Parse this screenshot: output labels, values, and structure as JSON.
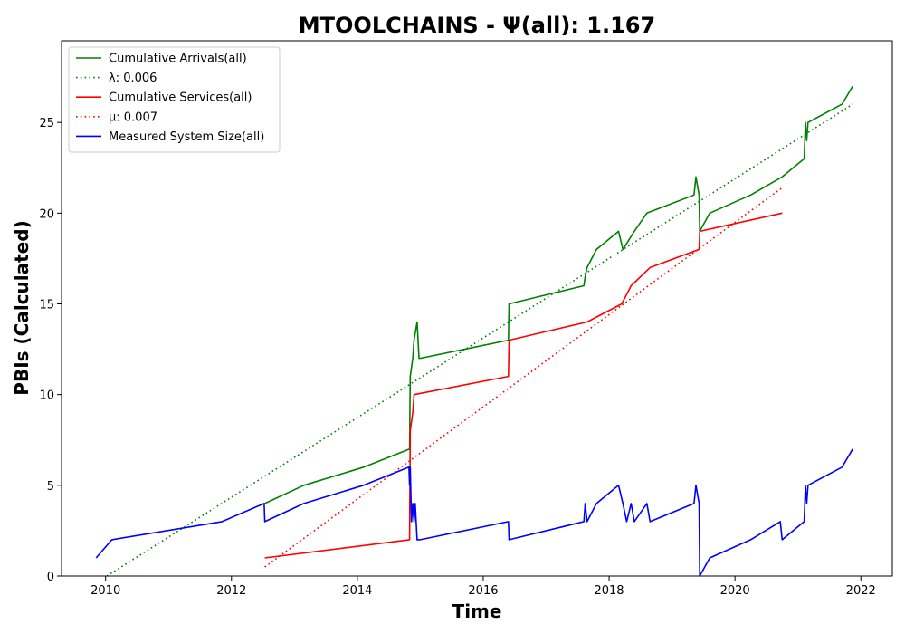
{
  "chart_data": {
    "type": "line",
    "title": "MTOOLCHAINS -  Ψ(all): 1.167",
    "xlabel": "Time",
    "ylabel": "PBIs (Calculated)",
    "xlim": [
      2009.3,
      2022.5
    ],
    "ylim": [
      0,
      29.5
    ],
    "xticks": [
      2010,
      2012,
      2014,
      2016,
      2018,
      2020,
      2022
    ],
    "yticks": [
      0,
      5,
      10,
      15,
      20,
      25
    ],
    "grid": false,
    "legend_position": "upper-left",
    "series": [
      {
        "name": "Cumulative Arrivals(all)",
        "color": "#008000",
        "style": "solid",
        "x": [
          2012.53,
          2013.15,
          2014.1,
          2014.83,
          2014.84,
          2014.86,
          2014.88,
          2014.9,
          2014.95,
          2014.98,
          2015.0,
          2016.4,
          2016.41,
          2017.6,
          2017.62,
          2017.65,
          2017.8,
          2018.15,
          2018.22,
          2018.4,
          2018.6,
          2019.35,
          2019.38,
          2019.43,
          2019.44,
          2019.6,
          2020.25,
          2020.75,
          2021.1,
          2021.12,
          2021.14,
          2021.16,
          2021.7,
          2021.87
        ],
        "y": [
          4,
          5,
          6,
          7,
          11,
          11.5,
          12,
          13,
          14,
          12,
          12,
          13,
          15,
          16,
          16.5,
          17,
          18,
          19,
          18,
          19,
          20,
          21,
          22,
          21,
          19,
          20,
          21,
          22,
          23,
          25,
          24,
          25,
          26,
          27
        ]
      },
      {
        "name": "λ: 0.006",
        "color": "#008000",
        "style": "dotted",
        "x": [
          2010.02,
          2021.87
        ],
        "y": [
          0,
          26
        ]
      },
      {
        "name": "Cumulative Services(all)",
        "color": "#ff0000",
        "style": "solid",
        "x": [
          2012.53,
          2014.83,
          2014.84,
          2014.86,
          2014.88,
          2014.9,
          2016.4,
          2016.41,
          2017.65,
          2018.2,
          2018.35,
          2018.65,
          2019.43,
          2019.44,
          2020.75
        ],
        "y": [
          1,
          2,
          8,
          8.5,
          9,
          10,
          11,
          13,
          14,
          15,
          16,
          17,
          18,
          19,
          20
        ]
      },
      {
        "name": "μ: 0.007",
        "color": "#ff0000",
        "style": "dotted",
        "x": [
          2012.53,
          2020.75
        ],
        "y": [
          0.5,
          21.4
        ]
      },
      {
        "name": "Measured System Size(all)",
        "color": "#0000ff",
        "style": "solid",
        "x": [
          2009.85,
          2010.1,
          2011.85,
          2012.52,
          2012.53,
          2013.15,
          2014.1,
          2014.82,
          2014.83,
          2014.84,
          2014.86,
          2014.88,
          2014.9,
          2014.92,
          2014.95,
          2015.0,
          2016.4,
          2016.41,
          2017.6,
          2017.62,
          2017.65,
          2017.8,
          2018.15,
          2018.22,
          2018.28,
          2018.35,
          2018.4,
          2018.6,
          2018.65,
          2019.35,
          2019.38,
          2019.43,
          2019.44,
          2019.6,
          2020.25,
          2020.72,
          2020.75,
          2021.1,
          2021.12,
          2021.14,
          2021.16,
          2021.7,
          2021.87
        ],
        "y": [
          1,
          2,
          3,
          4,
          3,
          4,
          5,
          6,
          5,
          6,
          3,
          4,
          3,
          4,
          2,
          2,
          3,
          2,
          3,
          4,
          3,
          4,
          5,
          4,
          3,
          4,
          3,
          4,
          3,
          4,
          5,
          4,
          0,
          1,
          2,
          3,
          2,
          3,
          5,
          4,
          5,
          6,
          7
        ]
      }
    ]
  }
}
